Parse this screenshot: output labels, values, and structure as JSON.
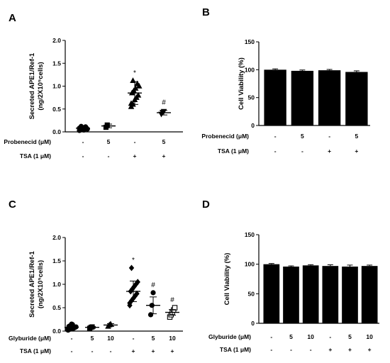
{
  "chart_data": [
    {
      "panel": "A",
      "type": "scatter",
      "ylabel_line1": "Secreted APE1/Ref-1",
      "ylabel_line2": "(ng/2X10⁵cells)",
      "ylim": [
        0,
        2.0
      ],
      "yticks": [
        "0.0",
        "0.5",
        "1.0",
        "1.5",
        "2.0"
      ],
      "grid": false,
      "conditions": [
        {
          "label": "Probenecid (μM)",
          "values": [
            "-",
            "5",
            "-",
            "5"
          ]
        },
        {
          "label": "TSA (1 μM)",
          "values": [
            "-",
            "-",
            "+",
            "+"
          ]
        }
      ],
      "groups": [
        {
          "marker": "circle",
          "points": [
            0.03,
            0.05,
            0.06,
            0.07,
            0.08,
            0.09,
            0.1,
            0.04,
            0.11,
            0.06,
            0.08,
            0.12,
            0.05
          ],
          "mean": 0.08,
          "sd": 0.035,
          "annotation": ""
        },
        {
          "marker": "square",
          "points": [
            0.1,
            0.15
          ],
          "mean": 0.13,
          "sd": 0.04,
          "annotation": ""
        },
        {
          "marker": "triangle-up",
          "points": [
            0.55,
            0.6,
            0.7,
            0.75,
            0.8,
            0.85,
            0.9,
            0.95,
            1.05,
            1.0,
            0.62,
            1.12
          ],
          "mean": 0.85,
          "sd": 0.25,
          "annotation": "*"
        },
        {
          "marker": "triangle-down",
          "points": [
            0.39,
            0.43,
            0.45
          ],
          "mean": 0.42,
          "sd": 0.05,
          "annotation": "#"
        }
      ]
    },
    {
      "panel": "B",
      "type": "bar",
      "ylabel": "Cell Viability (%)",
      "ylim": [
        0,
        150
      ],
      "yticks": [
        "0",
        "50",
        "100",
        "150"
      ],
      "grid": false,
      "conditions": [
        {
          "label": "Probenecid (μM)",
          "values": [
            "-",
            "5",
            "-",
            "5"
          ]
        },
        {
          "label": "TSA (1 μM)",
          "values": [
            "-",
            "-",
            "+",
            "+"
          ]
        }
      ],
      "values": [
        100,
        98,
        99,
        96
      ],
      "errors": [
        1.5,
        1.5,
        1.5,
        2
      ]
    },
    {
      "panel": "C",
      "type": "scatter",
      "ylabel_line1": "Secreted APE1/Ref-1",
      "ylabel_line2": "(ng/2X10⁵cells)",
      "ylim": [
        0,
        2.0
      ],
      "yticks": [
        "0.0",
        "0.5",
        "1.0",
        "1.5",
        "2.0"
      ],
      "grid": false,
      "conditions": [
        {
          "label": "Glyburide (μM)",
          "values": [
            "-",
            "5",
            "10",
            "-",
            "5",
            "10"
          ]
        },
        {
          "label": "TSA (1 μM)",
          "values": [
            "-",
            "-",
            "-",
            "+",
            "+",
            "+"
          ]
        }
      ],
      "groups": [
        {
          "marker": "circle",
          "points": [
            0.02,
            0.04,
            0.05,
            0.06,
            0.08,
            0.1,
            0.12,
            0.14,
            0.07,
            0.09,
            0.05,
            0.11,
            0.15
          ],
          "mean": 0.08,
          "sd": 0.045,
          "annotation": ""
        },
        {
          "marker": "square",
          "points": [
            0.06,
            0.08,
            0.09
          ],
          "mean": 0.08,
          "sd": 0.02,
          "annotation": ""
        },
        {
          "marker": "triangle-up",
          "points": [
            0.1,
            0.13,
            0.15
          ],
          "mean": 0.13,
          "sd": 0.03,
          "annotation": ""
        },
        {
          "marker": "diamond",
          "points": [
            0.55,
            0.65,
            0.7,
            0.75,
            0.8,
            0.85,
            0.9,
            0.95,
            1.0,
            1.05,
            0.6,
            1.35
          ],
          "mean": 0.85,
          "sd": 0.22,
          "annotation": "*"
        },
        {
          "marker": "circle",
          "points": [
            0.35,
            0.55,
            0.82
          ],
          "mean": 0.55,
          "sd": 0.18,
          "annotation": "#"
        },
        {
          "marker": "square-open",
          "points": [
            0.3,
            0.35,
            0.4,
            0.45,
            0.5
          ],
          "mean": 0.4,
          "sd": 0.06,
          "annotation": "#"
        }
      ]
    },
    {
      "panel": "D",
      "type": "bar",
      "ylabel": "Cell Viability (%)",
      "ylim": [
        0,
        150
      ],
      "yticks": [
        "0",
        "50",
        "100",
        "150"
      ],
      "grid": false,
      "conditions": [
        {
          "label": "Glyburide (μM)",
          "values": [
            "-",
            "5",
            "10",
            "-",
            "5",
            "10"
          ]
        },
        {
          "label": "TSA (1 μM)",
          "values": [
            "-",
            "-",
            "-",
            "+",
            "+",
            "+"
          ]
        }
      ],
      "values": [
        100,
        96,
        98,
        97,
        96,
        97
      ],
      "errors": [
        1.2,
        1.2,
        1.2,
        2,
        2.5,
        1.5
      ]
    }
  ]
}
